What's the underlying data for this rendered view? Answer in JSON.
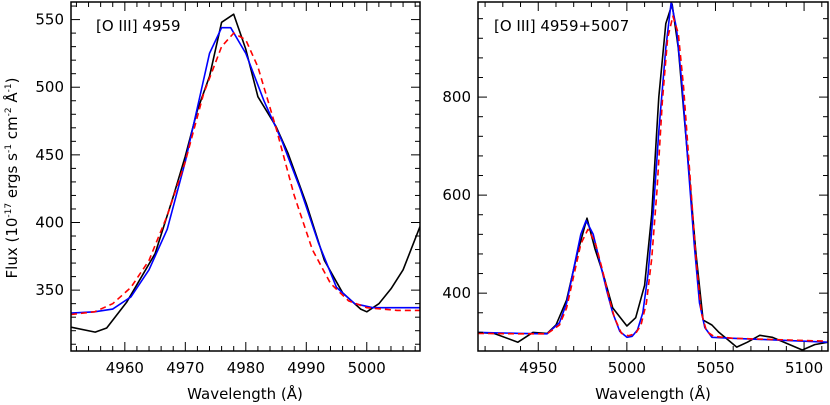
{
  "chart_data": [
    {
      "type": "line",
      "title": "[O III] 4959",
      "xlabel": "Wavelength (Å)",
      "ylabel": {
        "prefix": "Flux (10",
        "exp1": "-17",
        "mid1": " ergs s",
        "exp2": "-1",
        "mid2": " cm",
        "exp3": "-2",
        "mid3": " Å",
        "exp4": "-1",
        "suffix": ")"
      },
      "xlim": [
        4951.1,
        5008.8
      ],
      "ylim": [
        305,
        563
      ],
      "xticks": [
        4960,
        4970,
        4980,
        4990,
        5000
      ],
      "yticks": [
        350,
        400,
        450,
        500,
        550
      ],
      "xminor": 2,
      "yminor": 10,
      "grid": false,
      "series": [
        {
          "color": "#000000",
          "style": "solid",
          "x": [
            4951.1,
            4955.1,
            4957,
            4960.3,
            4965,
            4968,
            4970,
            4972,
            4974,
            4976,
            4978,
            4980,
            4982,
            4985,
            4987,
            4990,
            4993,
            4996,
            4999,
            5000,
            5002,
            5004,
            5006,
            5008.8
          ],
          "y": [
            322.6,
            319,
            322,
            341,
            377,
            419,
            449,
            483,
            508,
            548,
            554,
            528,
            493,
            471,
            451,
            414,
            372,
            348,
            336,
            334,
            340,
            351,
            365,
            397
          ]
        },
        {
          "color": "#0000ff",
          "style": "solid",
          "x": [
            4951.1,
            4955,
            4958,
            4961,
            4964,
            4967,
            4970,
            4972,
            4974,
            4976,
            4977.5,
            4980,
            4983,
            4986,
            4989,
            4992,
            4995,
            4998,
            5001,
            5005,
            5008.8
          ],
          "y": [
            333,
            334,
            336,
            345,
            365,
            395,
            445,
            485,
            525,
            544,
            544,
            525,
            490,
            460,
            425,
            385,
            352,
            340,
            337,
            337,
            337
          ]
        },
        {
          "color": "#ff0000",
          "style": "dashed",
          "x": [
            4951.1,
            4955,
            4958,
            4961,
            4964,
            4967,
            4970,
            4973,
            4976,
            4978,
            4980,
            4982,
            4985,
            4988,
            4991,
            4994,
            4997,
            5000,
            5005,
            5008.8
          ],
          "y": [
            332,
            334,
            340,
            352,
            372,
            405,
            445,
            495,
            530,
            540,
            535,
            515,
            470,
            420,
            380,
            355,
            342,
            337,
            335,
            335
          ]
        }
      ]
    },
    {
      "type": "line",
      "title": "[O III] 4959+5007",
      "xlabel": "Wavelength (Å)",
      "xlim": [
        4916,
        5113.5
      ],
      "ylim": [
        282,
        994
      ],
      "xticks": [
        4950,
        5000,
        5050,
        5100
      ],
      "yticks": [
        400,
        600,
        800
      ],
      "xminor": 10,
      "yminor": 40,
      "grid": false,
      "series": [
        {
          "color": "#000000",
          "style": "solid",
          "x": [
            4916,
            4925,
            4938.5,
            4947,
            4955,
            4960,
            4966,
            4972,
            4977.5,
            4982,
            4986.5,
            4992,
            5000,
            5005,
            5010,
            5014,
            5018,
            5022,
            5025.5,
            5029,
            5034,
            5039,
            5043,
            5048,
            5052,
            5057,
            5062,
            5068,
            5075,
            5082,
            5090,
            5099,
            5106,
            5113.5
          ],
          "y": [
            320,
            318,
            300,
            320,
            318,
            335,
            386,
            480,
            553,
            490,
            441,
            370,
            333,
            350,
            416,
            560,
            800,
            950,
            990,
            900,
            692,
            480,
            345,
            335,
            320,
            305,
            290,
            300,
            314,
            310,
            298,
            284,
            295,
            300
          ]
        },
        {
          "color": "#0000ff",
          "style": "solid",
          "x": [
            4916,
            4940,
            4955,
            4962,
            4966,
            4970,
            4974,
            4977,
            4981,
            4985,
            4989,
            4992,
            4996,
            5000,
            5003,
            5006,
            5009,
            5012,
            5015,
            5018,
            5022,
            5025,
            5028,
            5031,
            5034,
            5038,
            5041,
            5044,
            5048,
            5060,
            5113.5
          ],
          "y": [
            320,
            318,
            317,
            340,
            380,
            450,
            520,
            548,
            520,
            460,
            400,
            360,
            322,
            310,
            312,
            325,
            360,
            440,
            570,
            730,
            900,
            994,
            940,
            830,
            690,
            500,
            380,
            330,
            310,
            308,
            300
          ]
        },
        {
          "color": "#ff0000",
          "style": "dashed",
          "x": [
            4916,
            4940,
            4955,
            4962,
            4966,
            4970,
            4974,
            4978,
            4982,
            4986,
            4990,
            4993,
            4997,
            5001,
            5005,
            5008,
            5011,
            5014,
            5017,
            5020,
            5023,
            5026,
            5029,
            5032,
            5035,
            5039,
            5042,
            5045,
            5049,
            5060,
            5113.5
          ],
          "y": [
            318,
            317,
            317,
            335,
            370,
            435,
            500,
            530,
            505,
            450,
            390,
            350,
            318,
            313,
            318,
            335,
            380,
            470,
            610,
            790,
            920,
            965,
            930,
            820,
            670,
            470,
            360,
            322,
            312,
            308,
            302
          ]
        }
      ]
    }
  ]
}
